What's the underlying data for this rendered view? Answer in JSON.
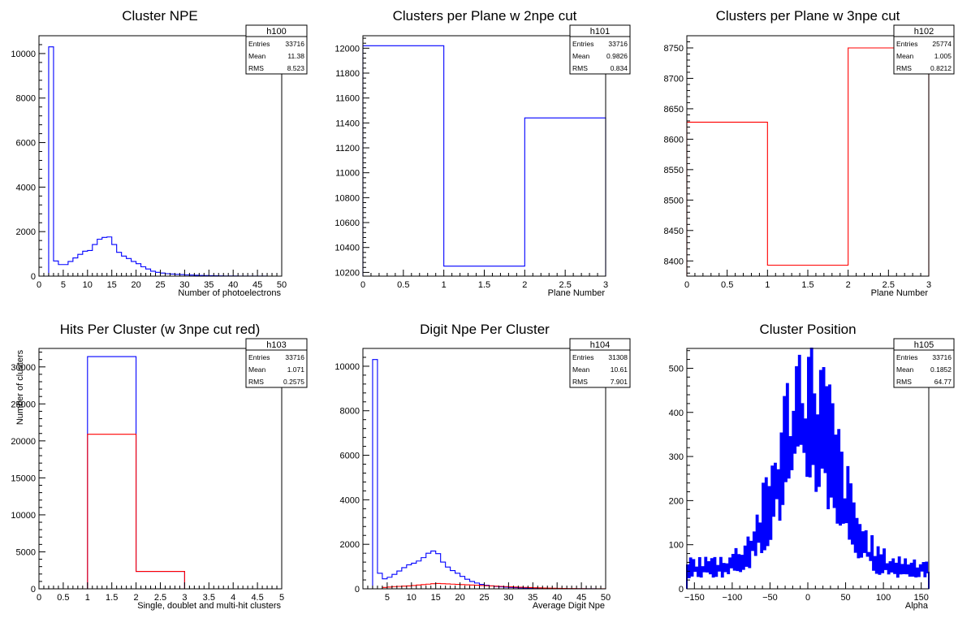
{
  "chart_data": [
    {
      "type": "histogram",
      "title": "Cluster NPE",
      "xlabel": "Number of photoelectrons",
      "ylabel": "",
      "xlim": [
        0,
        50
      ],
      "ylim": [
        0,
        10800
      ],
      "xticks": [
        0,
        5,
        10,
        15,
        20,
        25,
        30,
        35,
        40,
        45,
        50
      ],
      "yticks": [
        0,
        2000,
        4000,
        6000,
        8000,
        10000
      ],
      "stats": {
        "name": "h100",
        "Entries": "33716",
        "Mean": "11.38",
        "RMS": "8.523"
      },
      "series": [
        {
          "color": "#0000ff",
          "bin_start": 0,
          "bin_width": 1,
          "values": [
            0,
            0,
            10300,
            680,
            520,
            520,
            660,
            820,
            980,
            1120,
            1150,
            1420,
            1660,
            1740,
            1760,
            1420,
            1070,
            900,
            790,
            660,
            560,
            420,
            320,
            220,
            170,
            140,
            110,
            95,
            80,
            70,
            55,
            48,
            40,
            32,
            25,
            20,
            16,
            12,
            9,
            7,
            5,
            4,
            3,
            2,
            2,
            1,
            1,
            0,
            0,
            0
          ]
        }
      ]
    },
    {
      "type": "histogram",
      "title": "Clusters per Plane w 2npe cut",
      "xlabel": "Plane Number",
      "ylabel": "",
      "xlim": [
        0,
        3
      ],
      "ylim": [
        10170,
        12100
      ],
      "xticks": [
        0,
        0.5,
        1,
        1.5,
        2,
        2.5,
        3
      ],
      "yticks": [
        10200,
        10400,
        10600,
        10800,
        11000,
        11200,
        11400,
        11600,
        11800,
        12000
      ],
      "stats": {
        "name": "h101",
        "Entries": "33716",
        "Mean": "0.9826",
        "RMS": "0.834"
      },
      "series": [
        {
          "color": "#0000ff",
          "bin_start": 0,
          "bin_width": 1,
          "values": [
            12020,
            10250,
            11440
          ]
        }
      ]
    },
    {
      "type": "histogram",
      "title": "Clusters per Plane w 3npe cut",
      "xlabel": "Plane Number",
      "ylabel": "",
      "xlim": [
        0,
        3
      ],
      "ylim": [
        8375,
        8770
      ],
      "xticks": [
        0,
        0.5,
        1,
        1.5,
        2,
        2.5,
        3
      ],
      "yticks": [
        8400,
        8450,
        8500,
        8550,
        8600,
        8650,
        8700,
        8750
      ],
      "stats": {
        "name": "h102",
        "Entries": "25774",
        "Mean": "1.005",
        "RMS": "0.8212"
      },
      "series": [
        {
          "color": "#ff0000",
          "bin_start": 0,
          "bin_width": 1,
          "values": [
            8628,
            8393,
            8750
          ]
        }
      ]
    },
    {
      "type": "histogram",
      "title": "Hits Per Cluster (w 3npe cut red)",
      "xlabel": "Single, doublet and multi-hit clusters",
      "ylabel": "Number of clusters",
      "xlim": [
        0,
        5
      ],
      "ylim": [
        0,
        32500
      ],
      "xticks": [
        0,
        0.5,
        1,
        1.5,
        2,
        2.5,
        3,
        3.5,
        4,
        4.5,
        5
      ],
      "yticks": [
        0,
        5000,
        10000,
        15000,
        20000,
        25000,
        30000
      ],
      "stats": {
        "name": "h103",
        "Entries": "33716",
        "Mean": "1.071",
        "RMS": "0.2575"
      },
      "series": [
        {
          "color": "#0000ff",
          "bin_start": 0,
          "bin_width": 1,
          "values": [
            0,
            31400,
            2350,
            0,
            0
          ]
        },
        {
          "color": "#ff0000",
          "bin_start": 0,
          "bin_width": 1,
          "values": [
            0,
            20900,
            2350,
            0,
            0
          ]
        }
      ]
    },
    {
      "type": "histogram",
      "title": "Digit Npe Per Cluster",
      "xlabel": "Average Digit Npe",
      "ylabel": "",
      "xlim": [
        0,
        50
      ],
      "ylim": [
        0,
        10800
      ],
      "xticks": [
        5,
        10,
        15,
        20,
        25,
        30,
        35,
        40,
        45,
        50
      ],
      "yticks": [
        0,
        2000,
        4000,
        6000,
        8000,
        10000
      ],
      "stats": {
        "name": "h104",
        "Entries": "31308",
        "Mean": "10.61",
        "RMS": "7.901"
      },
      "series": [
        {
          "color": "#0000ff",
          "bin_start": 0,
          "bin_width": 1,
          "values": [
            0,
            0,
            10300,
            700,
            450,
            520,
            650,
            800,
            950,
            1080,
            1150,
            1250,
            1400,
            1600,
            1700,
            1580,
            1200,
            980,
            820,
            700,
            560,
            430,
            330,
            260,
            200,
            160,
            130,
            105,
            90,
            75,
            62,
            52,
            44,
            36,
            29,
            23,
            18,
            14,
            11,
            8,
            6,
            5,
            4,
            3,
            2,
            2,
            1,
            1,
            0,
            0
          ]
        },
        {
          "color": "#ff0000",
          "bin_start": 0,
          "bin_width": 1,
          "values": [
            0,
            0,
            0,
            0,
            60,
            80,
            100,
            110,
            120,
            130,
            150,
            170,
            190,
            210,
            230,
            240,
            230,
            220,
            210,
            200,
            190,
            180,
            170,
            160,
            150,
            140,
            130,
            120,
            110,
            100,
            90,
            80,
            72,
            64,
            56,
            48,
            42,
            36,
            30,
            25,
            20,
            16,
            13,
            10,
            8,
            6,
            4,
            3,
            2,
            1
          ]
        }
      ]
    },
    {
      "type": "histogram",
      "title": "Cluster Position",
      "xlabel": "Alpha",
      "ylabel": "",
      "xlim": [
        -160,
        160
      ],
      "ylim": [
        0,
        545
      ],
      "xticks": [
        -150,
        -100,
        -50,
        0,
        50,
        100,
        150
      ],
      "yticks": [
        0,
        100,
        200,
        300,
        400,
        500
      ],
      "stats": {
        "name": "h105",
        "Entries": "33716",
        "Mean": "0.1852",
        "RMS": "64.77"
      },
      "series": [
        {
          "color": "#0000ff",
          "bin_start": -160,
          "bin_width": 2,
          "profile": "spiky peak at 0 reaching about 520 with a base level near 60-110"
        }
      ]
    }
  ]
}
